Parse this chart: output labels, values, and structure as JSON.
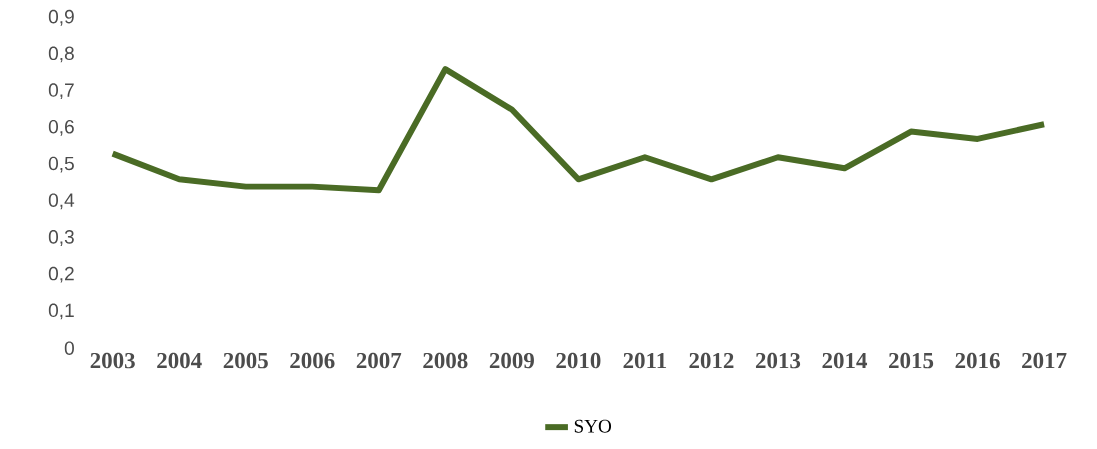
{
  "chart_data": {
    "type": "line",
    "categories": [
      "2003",
      "2004",
      "2005",
      "2006",
      "2007",
      "2008",
      "2009",
      "2010",
      "2011",
      "2012",
      "2013",
      "2014",
      "2015",
      "2016",
      "2017"
    ],
    "series": [
      {
        "name": "SYO",
        "color": "#4a6b25",
        "values": [
          0.53,
          0.46,
          0.44,
          0.44,
          0.43,
          0.76,
          0.65,
          0.46,
          0.52,
          0.46,
          0.52,
          0.49,
          0.59,
          0.57,
          0.61
        ]
      }
    ],
    "ylim": [
      0,
      0.9
    ],
    "yticks": [
      {
        "value": 0,
        "label": "0"
      },
      {
        "value": 0.1,
        "label": "0,1"
      },
      {
        "value": 0.2,
        "label": "0,2"
      },
      {
        "value": 0.3,
        "label": "0,3"
      },
      {
        "value": 0.4,
        "label": "0,4"
      },
      {
        "value": 0.5,
        "label": "0,5"
      },
      {
        "value": 0.6,
        "label": "0,6"
      },
      {
        "value": 0.7,
        "label": "0,7"
      },
      {
        "value": 0.8,
        "label": "0,8"
      },
      {
        "value": 0.9,
        "label": "0,9"
      }
    ],
    "grid": false,
    "legend": "bottom",
    "marker": "none",
    "line_style": "solid"
  }
}
